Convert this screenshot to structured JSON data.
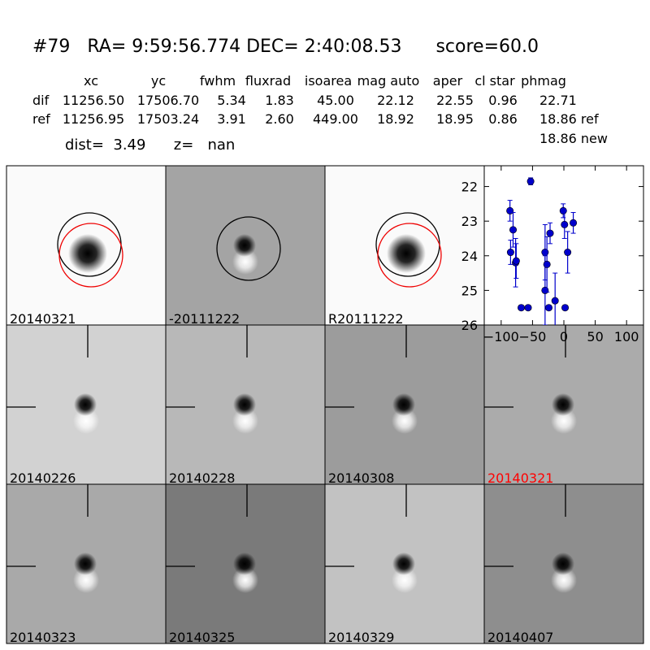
{
  "header": {
    "title": "#79   RA= 9:59:56.774 DEC= 2:40:08.53      score=60.0"
  },
  "table": {
    "columns": [
      "xc",
      "yc",
      "fwhm",
      "fluxrad",
      "isoarea",
      "mag auto",
      "aper",
      "cl star",
      "phmag"
    ],
    "rows": [
      {
        "label": "dif",
        "cells": [
          "11256.50",
          "17506.70",
          "5.34",
          "1.83",
          "45.00",
          "22.12",
          "22.55",
          "0.96",
          "22.71"
        ]
      },
      {
        "label": "ref",
        "cells": [
          "11256.95",
          "17503.24",
          "3.91",
          "2.60",
          "449.00",
          "18.92",
          "18.95",
          "0.86",
          "18.86 ref"
        ]
      }
    ],
    "note": "18.86 new"
  },
  "summary": "dist=  3.49      z=   nan",
  "stamps": [
    {
      "label": "20140321"
    },
    {
      "label": "-20111222"
    },
    {
      "label": "R20111222"
    },
    {
      "label": "20140226"
    },
    {
      "label": "20140228"
    },
    {
      "label": "20140308"
    },
    {
      "label": "20140321",
      "color": "#ff0000"
    },
    {
      "label": "20140323"
    },
    {
      "label": "20140325"
    },
    {
      "label": "20140329"
    },
    {
      "label": "20140407"
    }
  ],
  "chart_data": {
    "type": "errorbar",
    "x": [
      -86,
      -85,
      -81,
      -77,
      -76,
      -68,
      -57,
      -53,
      -30,
      -30,
      -27,
      -24,
      -22,
      -14,
      -1,
      1,
      2,
      6,
      15
    ],
    "values": [
      22.7,
      23.9,
      23.25,
      24.2,
      24.15,
      25.5,
      25.5,
      21.85,
      23.9,
      25.0,
      24.25,
      25.5,
      23.35,
      25.3,
      22.7,
      23.1,
      25.5,
      23.9,
      23.05
    ],
    "errors": [
      0.3,
      0.35,
      0.5,
      0.7,
      0.5,
      0.05,
      0.05,
      0.1,
      0.8,
      1.0,
      0.8,
      0.05,
      0.3,
      0.8,
      0.2,
      0.4,
      0.05,
      0.6,
      0.3
    ],
    "color": "#0000cc",
    "xlim": [
      -127,
      127
    ],
    "xticks": [
      {
        "value": -100,
        "label": "−100"
      },
      {
        "value": -50,
        "label": "−50"
      },
      0,
      50,
      100
    ],
    "ylim": [
      26,
      21.4
    ],
    "yticks": [
      22,
      23,
      24,
      25,
      26
    ]
  }
}
